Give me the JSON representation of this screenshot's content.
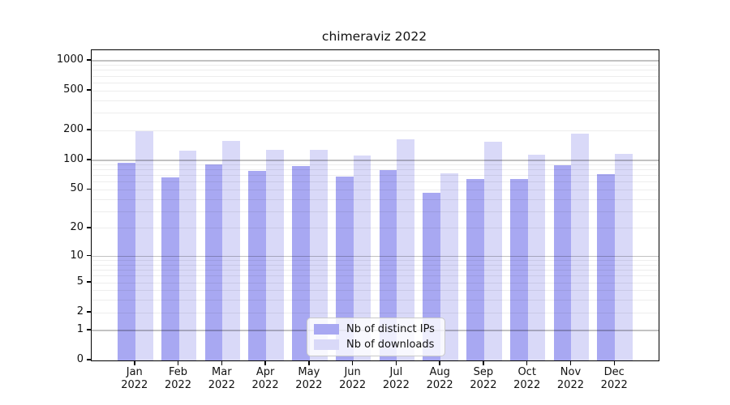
{
  "chart_data": {
    "type": "bar",
    "title": "chimeraviz 2022",
    "x_categories": [
      "Jan",
      "Feb",
      "Mar",
      "Apr",
      "May",
      "Jun",
      "Jul",
      "Aug",
      "Sep",
      "Oct",
      "Nov",
      "Dec"
    ],
    "x_year": "2022",
    "series": [
      {
        "name": "Nb of distinct IPs",
        "color": "#a8a8f2",
        "values": [
          95,
          67,
          91,
          78,
          88,
          69,
          80,
          47,
          65,
          64,
          89,
          73
        ]
      },
      {
        "name": "Nb of downloads",
        "color": "#d9d9f8",
        "values": [
          197,
          125,
          158,
          127,
          127,
          111,
          162,
          74,
          155,
          113,
          185,
          115
        ]
      }
    ],
    "yscale": "log1p",
    "ylim": [
      0,
      1300
    ],
    "ytick_labels": [
      "0",
      "1",
      "2",
      "5",
      "10",
      "20",
      "50",
      "100",
      "200",
      "500",
      "1000"
    ],
    "ytick_values": [
      0,
      1,
      2,
      5,
      10,
      20,
      50,
      100,
      200,
      500,
      1000
    ],
    "major_gridlines": [
      1,
      10,
      100,
      1000
    ],
    "minor_gridlines": [
      2,
      3,
      4,
      5,
      6,
      7,
      8,
      9,
      20,
      30,
      40,
      50,
      60,
      70,
      80,
      90,
      200,
      300,
      400,
      500,
      600,
      700,
      800,
      900
    ],
    "grid": true,
    "legend_position": "lower center",
    "background": "#ffffff"
  }
}
